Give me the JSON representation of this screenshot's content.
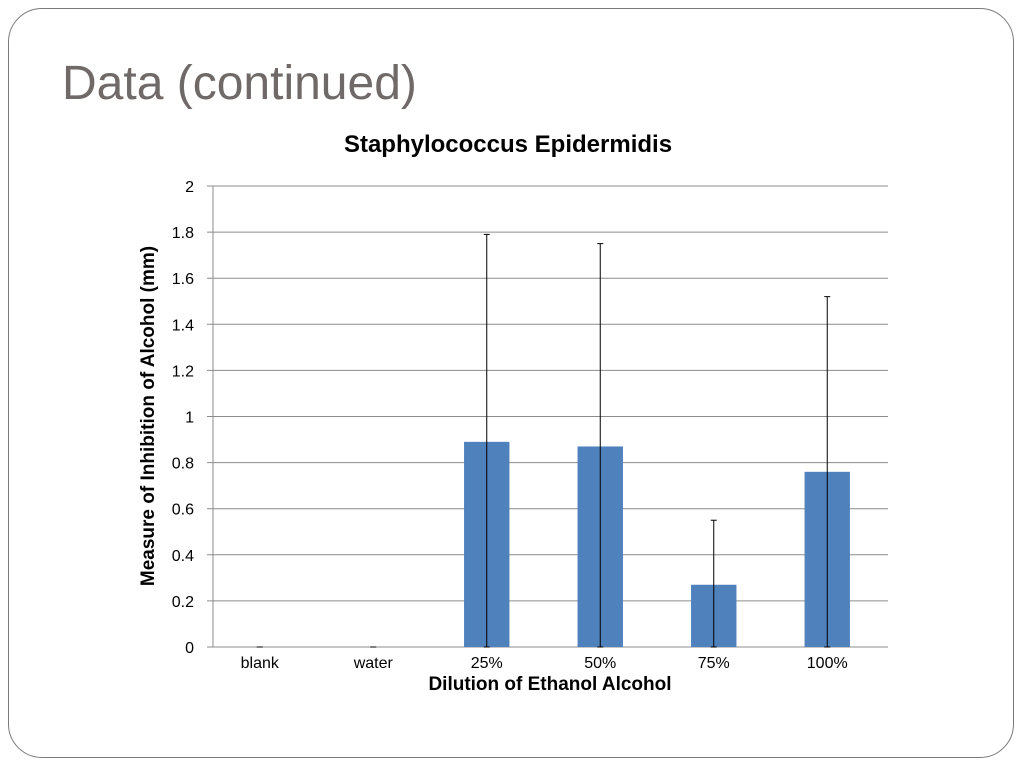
{
  "slide": {
    "title": "Data (continued)"
  },
  "chart_data": {
    "type": "bar",
    "title": "Staphylococcus Epidermidis",
    "xlabel": "Dilution of Ethanol Alcohol",
    "ylabel": "Measure of Inhibition of Alcohol (mm)",
    "categories": [
      "blank",
      "water",
      "25%",
      "50%",
      "75%",
      "100%"
    ],
    "values": [
      0,
      0,
      0.89,
      0.87,
      0.27,
      0.76
    ],
    "error_upper": [
      0,
      0,
      0.9,
      0.88,
      0.28,
      0.76
    ],
    "error_lower": [
      0,
      0,
      0.89,
      0.87,
      0.27,
      0.76
    ],
    "ylim": [
      0,
      2
    ],
    "yticks": [
      0,
      0.2,
      0.4,
      0.6,
      0.8,
      1,
      1.2,
      1.4,
      1.6,
      1.8,
      2
    ],
    "ytick_labels": [
      "0",
      "0.2",
      "0.4",
      "0.6",
      "0.8",
      "1",
      "1.2",
      "1.4",
      "1.6",
      "1.8",
      "2"
    ],
    "grid": true,
    "legend": "none",
    "bar_color": "#4f81bd",
    "grid_color": "#8c8c8c"
  }
}
